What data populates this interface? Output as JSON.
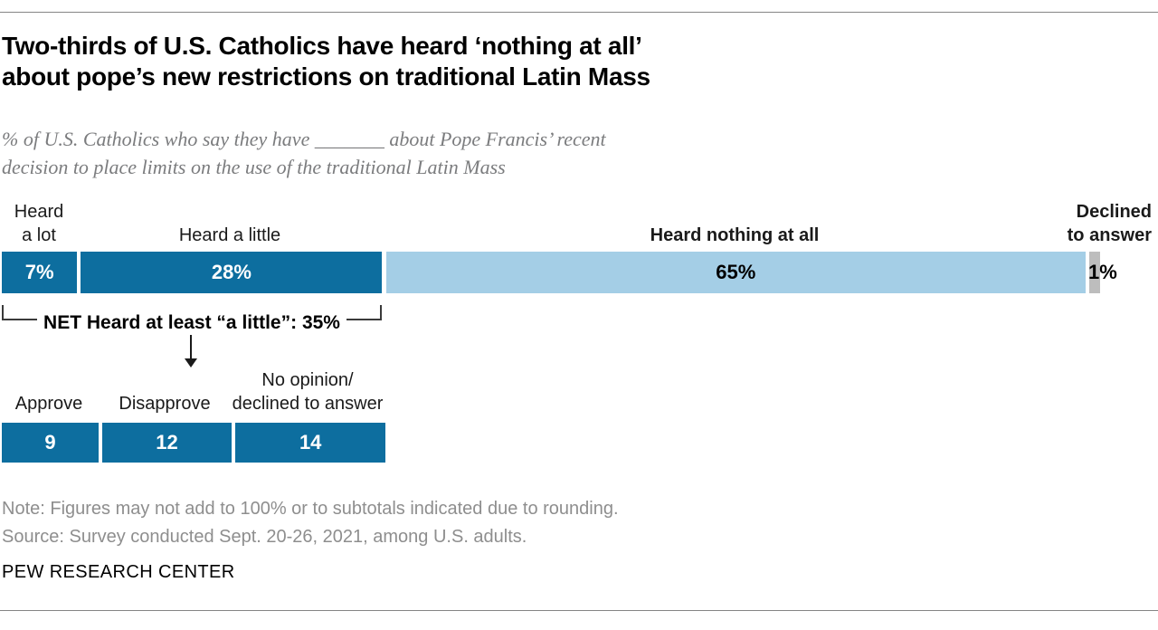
{
  "header": {
    "title_line1": "Two-thirds of U.S. Catholics have heard ‘nothing at all’",
    "title_line2": "about pope’s new restrictions on traditional Latin Mass",
    "subtitle_line1": "% of U.S. Catholics who say they have _______ about Pope Francis’ recent",
    "subtitle_line2": "decision to place limits on the use of the traditional Latin Mass"
  },
  "chart_data": [
    {
      "type": "bar",
      "variant": "horizontal-stacked",
      "title": "% of U.S. Catholics who say they have ___ about Pope Francis’ recent decision to place limits on the use of the traditional Latin Mass",
      "categories": [
        "Heard a lot",
        "Heard a little",
        "Heard nothing at all",
        "Declined to answer"
      ],
      "values": [
        7,
        28,
        65,
        1
      ],
      "value_labels": [
        "7%",
        "28%",
        "65%",
        "1%"
      ],
      "colors": [
        "#0d6e9f",
        "#0d6e9f",
        "#a4cee6",
        "#bdbdbd"
      ],
      "label_text_colors": [
        "#ffffff",
        "#ffffff",
        "#000000",
        "#000000"
      ],
      "net_label": "NET Heard at least “a little”: 35%",
      "net_value": 35,
      "xlim": [
        0,
        101
      ],
      "grid": false,
      "legend": "labels above segments"
    },
    {
      "type": "bar",
      "variant": "horizontal-stacked",
      "categories": [
        "Approve",
        "Disapprove",
        "No opinion/declined to answer"
      ],
      "values": [
        9,
        12,
        14
      ],
      "value_labels": [
        "9",
        "12",
        "14"
      ],
      "colors": [
        "#0d6e9f",
        "#0d6e9f",
        "#0d6e9f"
      ],
      "label_text_colors": [
        "#ffffff",
        "#ffffff",
        "#ffffff"
      ],
      "grid": false,
      "legend": "labels above segments"
    }
  ],
  "bar1_labels": {
    "heard_a_lot_line1": "Heard",
    "heard_a_lot_line2": "a lot",
    "heard_a_little": "Heard a little",
    "heard_nothing": "Heard nothing at all",
    "declined_line1": "Declined",
    "declined_line2": "to answer"
  },
  "bar2_labels": {
    "approve": "Approve",
    "disapprove": "Disapprove",
    "no_opinion_line1": "No opinion/",
    "no_opinion_line2": "declined to answer"
  },
  "footer": {
    "note": "Note: Figures may not add to 100% or to subtotals indicated due to rounding.",
    "source": "Source: Survey conducted Sept. 20-26, 2021, among U.S. adults.",
    "brand": "PEW RESEARCH CENTER"
  }
}
